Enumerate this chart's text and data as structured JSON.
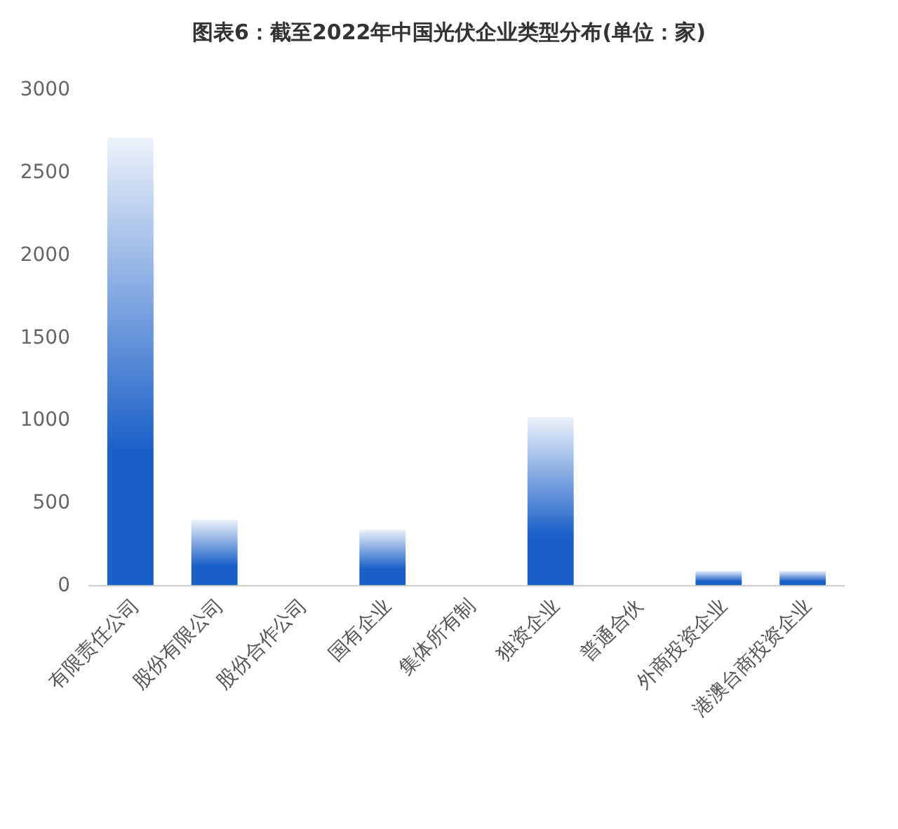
{
  "chart_data": {
    "type": "bar",
    "title": "图表6：截至2022年中国光伏企业类型分布(单位：家)",
    "categories": [
      "有限责任公司",
      "股份有限公司",
      "股份合作公司",
      "国有企业",
      "集体所有制",
      "独资企业",
      "普通合伙",
      "外商投资企业",
      "港澳台商投资企业"
    ],
    "values": [
      2710,
      400,
      0,
      340,
      0,
      1020,
      0,
      90,
      90
    ],
    "color": "#1a5fc8",
    "ylim": [
      0,
      3000
    ],
    "yticks": [
      0,
      500,
      1000,
      1500,
      2000,
      2500,
      3000
    ]
  }
}
